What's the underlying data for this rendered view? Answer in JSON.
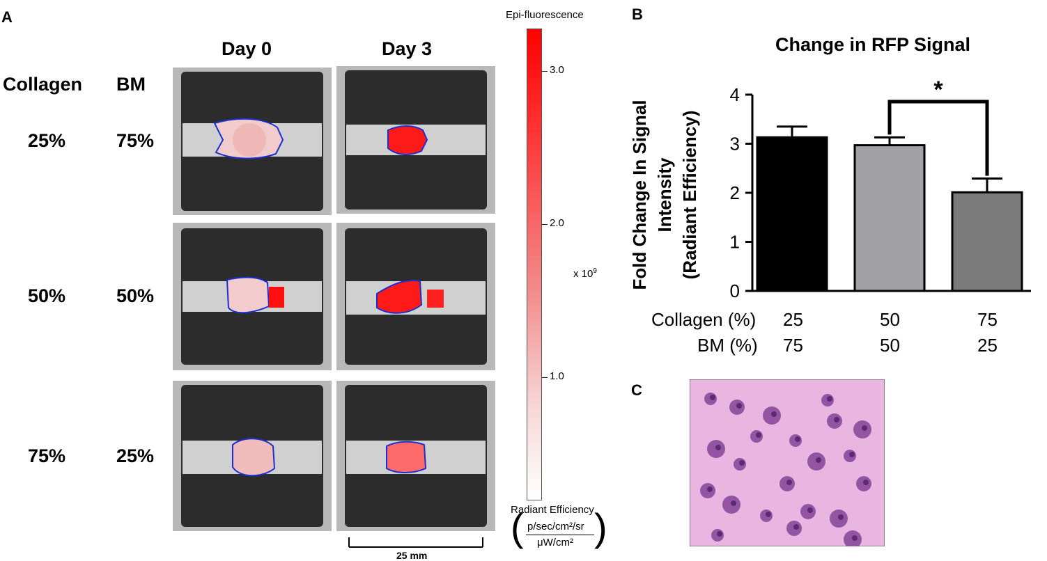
{
  "panel_a": {
    "letter": "A",
    "col_headers": [
      "Day 0",
      "Day 3"
    ],
    "row_headers": [
      "Collagen",
      "BM"
    ],
    "rows": [
      {
        "collagen": "25%",
        "bm": "75%"
      },
      {
        "collagen": "50%",
        "bm": "50%"
      },
      {
        "collagen": "75%",
        "bm": "25%"
      }
    ],
    "scalebar_label": "25 mm"
  },
  "colorbar": {
    "title": "Epi-fluorescence",
    "ticks": [
      "3.0",
      "2.0",
      "1.0"
    ],
    "multiplier": "x 10",
    "multiplier_exp": "9",
    "unit_label": "Radiant Efficiency",
    "unit_numerator": "p/sec/cm²/sr",
    "unit_denominator": "μW/cm²",
    "color_max": "#ff0000",
    "color_min": "#ffffff"
  },
  "panel_b": {
    "letter": "B",
    "significance": "*",
    "row_labels": [
      "Collagen (%)",
      "BM (%)"
    ]
  },
  "panel_c": {
    "letter": "C"
  },
  "chart_data": {
    "type": "bar",
    "title": "Change in RFP Signal",
    "ylabel": [
      "Fold Change In Signal",
      "Intensity",
      "(Radiant Efficiency)"
    ],
    "xlabel": "",
    "categories": [
      {
        "collagen": "25",
        "bm": "75"
      },
      {
        "collagen": "50",
        "bm": "50"
      },
      {
        "collagen": "75",
        "bm": "25"
      }
    ],
    "values": [
      3.13,
      2.97,
      2.01
    ],
    "errors": [
      0.22,
      0.16,
      0.28
    ],
    "colors": [
      "#000000",
      "#a2a2a6",
      "#7a7a7a"
    ],
    "ylim": [
      0,
      4
    ],
    "yticks": [
      "0",
      "1",
      "2",
      "3",
      "4"
    ],
    "grid": false
  }
}
